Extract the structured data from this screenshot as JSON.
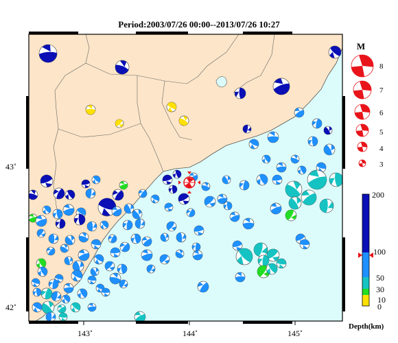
{
  "title": "Period:2003/07/26 00:00--2013/07/26 10:27",
  "axes": {
    "x_ticks": [
      "143˚",
      "144˚",
      "145˚"
    ],
    "y_ticks": [
      "43˚",
      "42˚"
    ]
  },
  "magnitude_legend": {
    "label": "M",
    "entries": [
      "8",
      "7",
      "6",
      "5",
      "4",
      "3"
    ]
  },
  "depth_scale": {
    "label": "Depth(km)",
    "ticks": [
      "200",
      "100",
      "50",
      "30",
      "10",
      "0"
    ],
    "colors": {
      "deep": "#0a10b5",
      "mid": "#1e90ff",
      "shallow": "#16c3c3",
      "shallower": "#22dd22",
      "surface": "#ffe000"
    }
  },
  "epicenter": {
    "marker": "red-star",
    "color": "#e8141a"
  },
  "colors": {
    "land": "#fce5c8",
    "sea": "#dcfcfc",
    "frame": "#000000",
    "mainshock": "#e8141a"
  }
}
